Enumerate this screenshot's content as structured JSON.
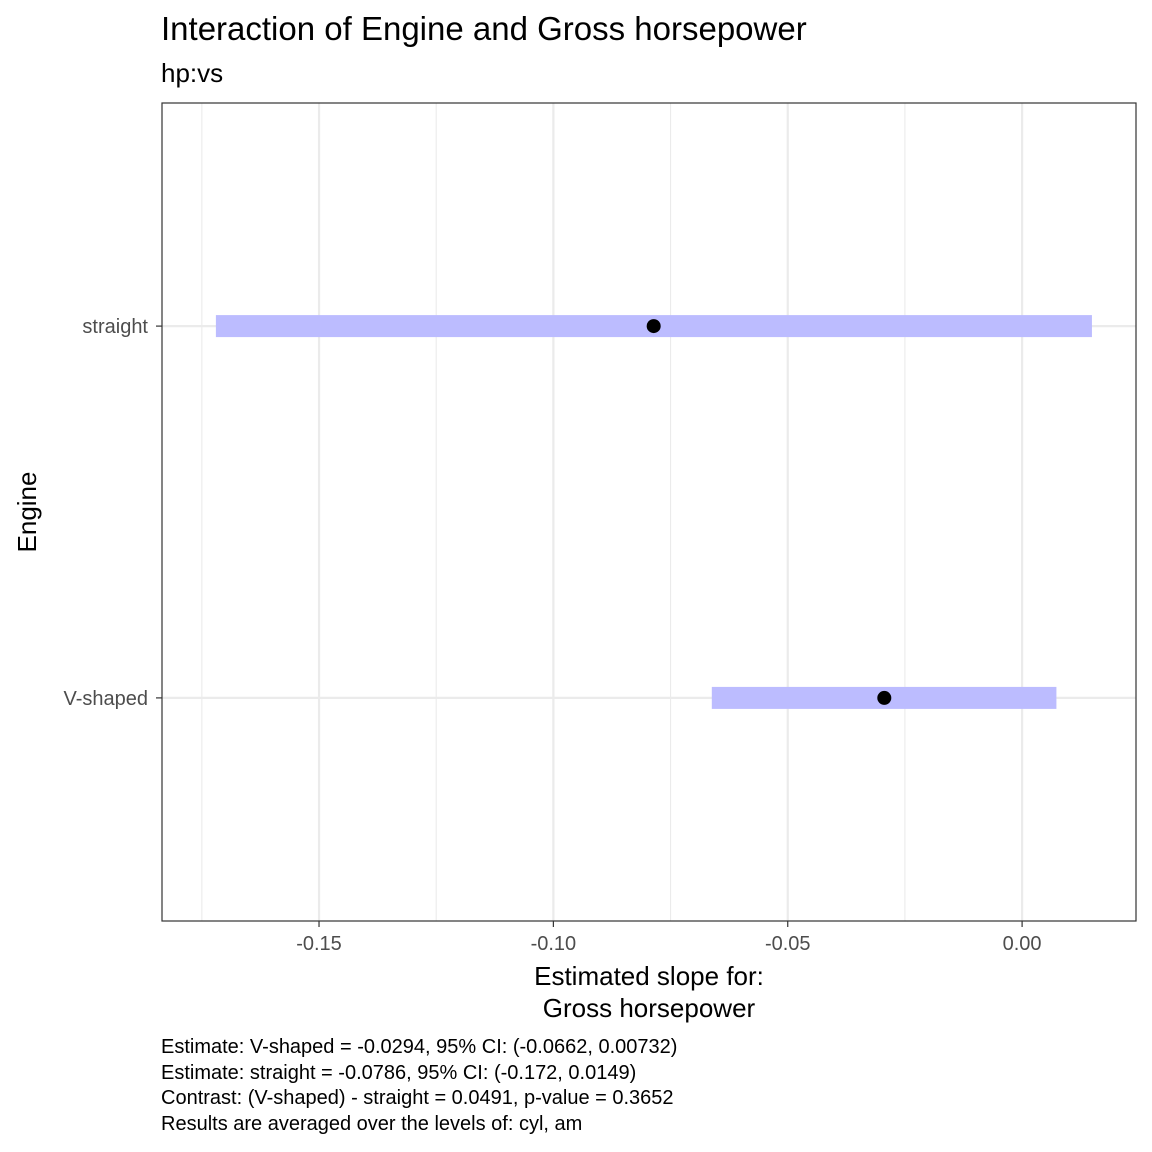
{
  "chart_data": {
    "type": "interval",
    "title": "Interaction of Engine and Gross horsepower",
    "subtitle": "hp:vs",
    "xlabel": [
      "Estimated slope for:",
      "Gross horsepower"
    ],
    "ylabel": "Engine",
    "xlim": [
      -0.1835,
      0.0243
    ],
    "x_ticks": [
      -0.15,
      -0.1,
      -0.05,
      0.0
    ],
    "x_tick_labels": [
      "-0.15",
      "-0.10",
      "-0.05",
      "0.00"
    ],
    "x_minor_ticks": [
      -0.175,
      -0.125,
      -0.075,
      -0.025
    ],
    "categories": [
      "straight",
      "V-shaped"
    ],
    "estimates": [
      -0.0786,
      -0.0294
    ],
    "ci_low": [
      -0.172,
      -0.0662
    ],
    "ci_high": [
      0.0149,
      0.00732
    ],
    "grid": true,
    "interval_color": "#bcbcff",
    "point_color": "#000000"
  },
  "caption": [
    "Estimate: V-shaped = -0.0294, 95% CI: (-0.0662, 0.00732)",
    "Estimate: straight = -0.0786, 95% CI: (-0.172, 0.0149)",
    "Contrast: (V-shaped) - straight = 0.0491, p-value = 0.3652",
    "Results are averaged over the levels of: cyl, am"
  ]
}
